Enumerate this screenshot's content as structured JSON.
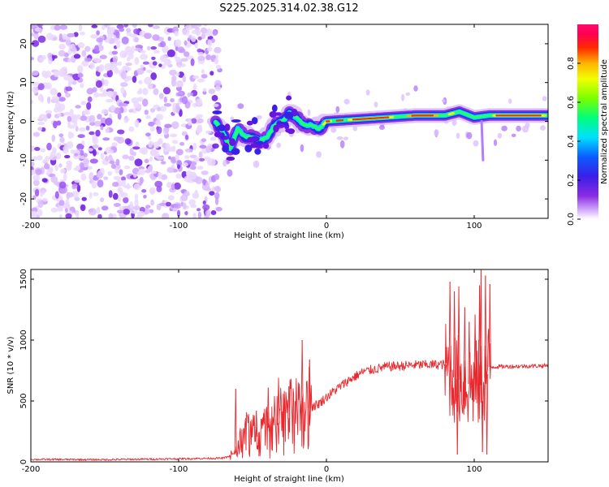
{
  "title": "S225.2025.314.02.38.G12",
  "chart_data": [
    {
      "type": "heatmap",
      "xlabel": "Height of straight line (km)",
      "ylabel": "Frequency (Hz)",
      "xlim": [
        -200,
        150
      ],
      "ylim": [
        -25,
        25
      ],
      "xticks": [
        -200,
        -100,
        0,
        100
      ],
      "yticks": [
        -20,
        -10,
        0,
        10,
        20
      ],
      "colorbar": {
        "label": "Normalized spectral amplitude",
        "range": [
          0,
          1
        ],
        "ticks": [
          "0.0",
          "0.2",
          "0.4",
          "0.6",
          "0.8"
        ]
      },
      "ridge": [
        {
          "x": -75,
          "y": 0
        },
        {
          "x": -70,
          "y": -3
        },
        {
          "x": -65,
          "y": -7
        },
        {
          "x": -60,
          "y": -2
        },
        {
          "x": -55,
          "y": -4
        },
        {
          "x": -50,
          "y": -4
        },
        {
          "x": -45,
          "y": -5
        },
        {
          "x": -40,
          "y": -4
        },
        {
          "x": -35,
          "y": -1
        },
        {
          "x": -30,
          "y": 0
        },
        {
          "x": -25,
          "y": 2
        },
        {
          "x": -20,
          "y": 1
        },
        {
          "x": -15,
          "y": -1
        },
        {
          "x": -10,
          "y": -1
        },
        {
          "x": -5,
          "y": -2
        },
        {
          "x": 0,
          "y": 0
        },
        {
          "x": 20,
          "y": 0.5
        },
        {
          "x": 40,
          "y": 1
        },
        {
          "x": 60,
          "y": 1.5
        },
        {
          "x": 80,
          "y": 1.5
        },
        {
          "x": 90,
          "y": 2.5
        },
        {
          "x": 100,
          "y": 1
        },
        {
          "x": 110,
          "y": 1.5
        },
        {
          "x": 150,
          "y": 1.5
        }
      ],
      "noise_region": {
        "x": [
          -200,
          -72
        ],
        "y": [
          -25,
          25
        ]
      }
    },
    {
      "type": "line",
      "xlabel": "Height of straight line (km)",
      "ylabel": "SNR (10 * v/v)",
      "xlim": [
        -200,
        150
      ],
      "ylim": [
        0,
        1580
      ],
      "xticks": [
        -200,
        -100,
        0,
        100
      ],
      "yticks": [
        0,
        500,
        1000,
        1500
      ],
      "color": "#e8282d",
      "envelope": [
        {
          "x": -200,
          "y": 20
        },
        {
          "x": -150,
          "y": 18
        },
        {
          "x": -100,
          "y": 25
        },
        {
          "x": -70,
          "y": 30
        },
        {
          "x": -62,
          "y": 60
        },
        {
          "x": -55,
          "y": 220
        },
        {
          "x": -45,
          "y": 200
        },
        {
          "x": -35,
          "y": 300
        },
        {
          "x": -25,
          "y": 360
        },
        {
          "x": -15,
          "y": 420
        },
        {
          "x": -5,
          "y": 480
        },
        {
          "x": 5,
          "y": 580
        },
        {
          "x": 15,
          "y": 670
        },
        {
          "x": 25,
          "y": 740
        },
        {
          "x": 40,
          "y": 780
        },
        {
          "x": 60,
          "y": 795
        },
        {
          "x": 80,
          "y": 800
        },
        {
          "x": 85,
          "y": 700
        },
        {
          "x": 95,
          "y": 640
        },
        {
          "x": 105,
          "y": 630
        },
        {
          "x": 110,
          "y": 780
        },
        {
          "x": 150,
          "y": 790
        }
      ],
      "spikes": [
        {
          "x": -62,
          "y": 600
        },
        {
          "x": -48,
          "y": 420
        },
        {
          "x": -40,
          "y": 610
        },
        {
          "x": -33,
          "y": 690
        },
        {
          "x": -26,
          "y": 620
        },
        {
          "x": -17,
          "y": 1000
        },
        {
          "x": -12,
          "y": 840
        },
        {
          "x": 80,
          "y": 740
        },
        {
          "x": 83,
          "y": 1480
        },
        {
          "x": 86,
          "y": 1400
        },
        {
          "x": 88,
          "y": 60
        },
        {
          "x": 89,
          "y": 1440
        },
        {
          "x": 93,
          "y": 1270
        },
        {
          "x": 96,
          "y": 1150
        },
        {
          "x": 100,
          "y": 1210
        },
        {
          "x": 103,
          "y": 1450
        },
        {
          "x": 104,
          "y": 1580
        },
        {
          "x": 105,
          "y": 80
        },
        {
          "x": 107,
          "y": 1530
        },
        {
          "x": 108,
          "y": 60
        },
        {
          "x": 110,
          "y": 1460
        }
      ]
    }
  ]
}
